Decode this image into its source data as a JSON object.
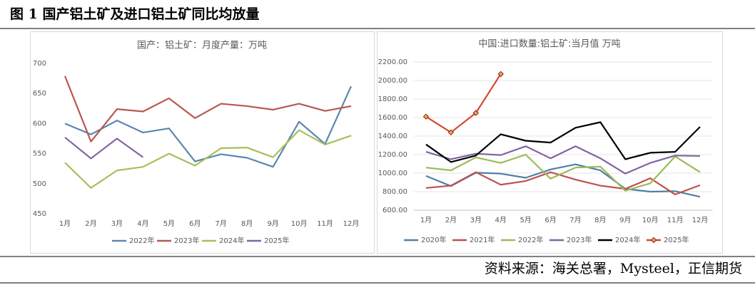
{
  "title": "图 1 国产铝土矿及进口铝土矿同比均放量",
  "source": "资料来源：海关总署，Mysteel，正信期货",
  "chart_data": [
    {
      "type": "line",
      "title": "国产：铝土矿：月度产量：万吨",
      "categories": [
        "1月",
        "2月",
        "3月",
        "4月",
        "5月",
        "6月",
        "7月",
        "8月",
        "9月",
        "10月",
        "11月",
        "12月"
      ],
      "ylim": [
        450,
        700
      ],
      "yticks": [
        450,
        500,
        550,
        600,
        650,
        700
      ],
      "grid": false,
      "legend": "bottom",
      "series": [
        {
          "name": "2022年",
          "color": "#5b87ad",
          "values": [
            600,
            582,
            605,
            585,
            592,
            537,
            549,
            543,
            528,
            603,
            566,
            662
          ]
        },
        {
          "name": "2023年",
          "color": "#b9574f",
          "values": [
            679,
            570,
            624,
            620,
            642,
            609,
            633,
            629,
            623,
            633,
            621,
            629
          ]
        },
        {
          "name": "2024年",
          "color": "#a5c05c",
          "values": [
            535,
            493,
            522,
            528,
            550,
            530,
            559,
            560,
            544,
            589,
            565,
            580
          ]
        },
        {
          "name": "2025年",
          "color": "#8066a0",
          "values": [
            577,
            542,
            575,
            544,
            null,
            null,
            null,
            null,
            null,
            null,
            null,
            null
          ]
        }
      ]
    },
    {
      "type": "line",
      "title": "中国:进口数量:铝土矿:当月值 万吨",
      "categories": [
        "1月",
        "2月",
        "3月",
        "4月",
        "5月",
        "6月",
        "7月",
        "8月",
        "9月",
        "10月",
        "11月",
        "12月"
      ],
      "ylim": [
        600,
        2200
      ],
      "yticks": [
        {
          "value": 600,
          "label": "600.00"
        },
        {
          "value": 800,
          "label": "800.00"
        },
        {
          "value": 1000,
          "label": "1000.00"
        },
        {
          "value": 1200,
          "label": "1200.00"
        },
        {
          "value": 1400,
          "label": "1400.00"
        },
        {
          "value": 1600,
          "label": "1600.00"
        },
        {
          "value": 1800,
          "label": "1800.00"
        },
        {
          "value": 2000,
          "label": "2000.00"
        },
        {
          "value": 2200,
          "label": "2200.00"
        }
      ],
      "grid": true,
      "legend": "bottom",
      "series": [
        {
          "name": "2020年",
          "color": "#4f7fa8",
          "values": [
            970,
            860,
            1005,
            995,
            950,
            1040,
            1095,
            1030,
            830,
            800,
            805,
            745
          ]
        },
        {
          "name": "2021年",
          "color": "#c0504d",
          "values": [
            840,
            865,
            1010,
            875,
            915,
            1010,
            930,
            865,
            830,
            945,
            770,
            870
          ]
        },
        {
          "name": "2022年",
          "color": "#9bbb59",
          "values": [
            1060,
            1030,
            1170,
            1110,
            1200,
            940,
            1060,
            1070,
            810,
            890,
            1180,
            1010
          ]
        },
        {
          "name": "2023年",
          "color": "#8064a2",
          "values": [
            1230,
            1150,
            1210,
            1195,
            1290,
            1160,
            1290,
            1160,
            995,
            1110,
            1190,
            1185
          ]
        },
        {
          "name": "2024年",
          "color": "#000000",
          "values": [
            1310,
            1120,
            1190,
            1420,
            1350,
            1330,
            1490,
            1550,
            1150,
            1220,
            1230,
            1500
          ]
        },
        {
          "name": "2025年",
          "color": "#d9482e",
          "marker": "diamond",
          "values": [
            1610,
            1440,
            1650,
            2070,
            null,
            null,
            null,
            null,
            null,
            null,
            null,
            null
          ]
        }
      ]
    }
  ]
}
